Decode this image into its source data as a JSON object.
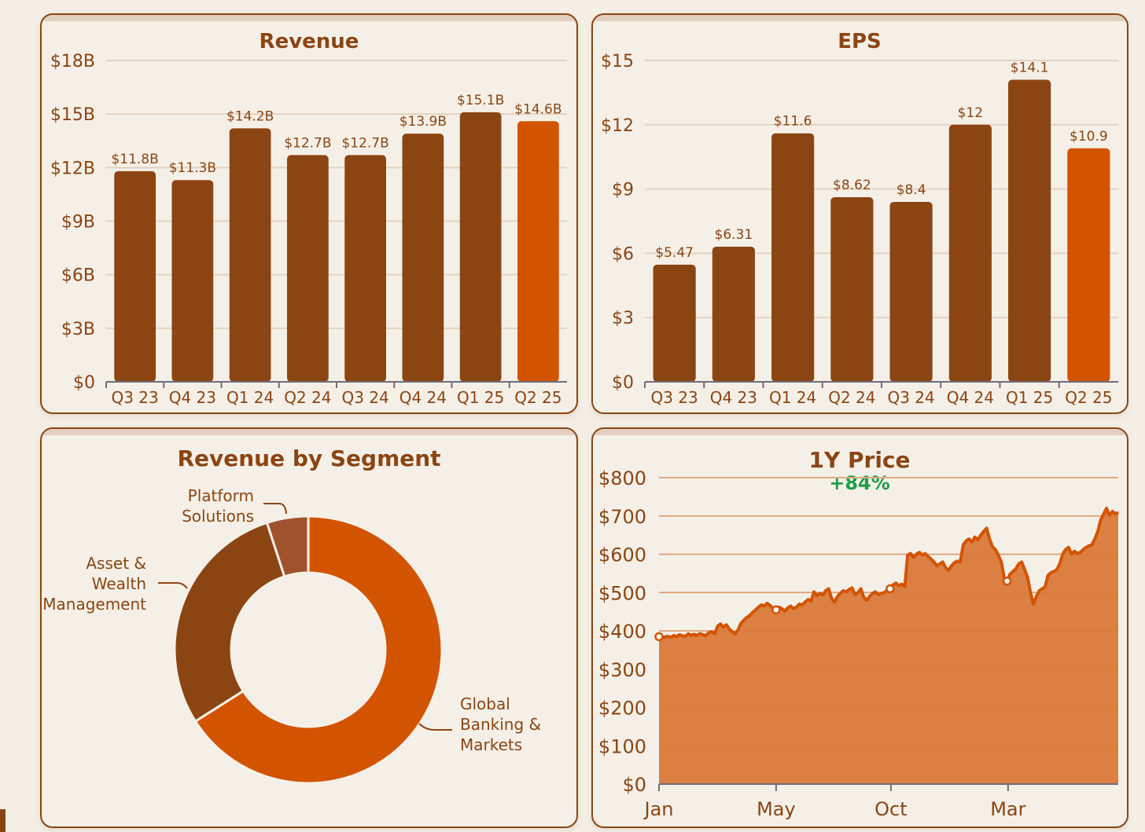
{
  "colors": {
    "primary": "#8b4513",
    "highlight": "#d35400",
    "platform": "#a0522d",
    "area_fill": "#dc7f43",
    "grid": "#e3d2c2",
    "positive": "#1e9e4a"
  },
  "chart_data": [
    {
      "id": "revenue",
      "type": "bar",
      "title": "Revenue",
      "categories": [
        "Q3 23",
        "Q4 23",
        "Q1 24",
        "Q2 24",
        "Q3 24",
        "Q4 24",
        "Q1 25",
        "Q2 25"
      ],
      "values": [
        11.8,
        11.3,
        14.2,
        12.7,
        12.7,
        13.9,
        15.1,
        14.6
      ],
      "data_labels": [
        "$11.8B",
        "$11.3B",
        "$14.2B",
        "$12.7B",
        "$12.7B",
        "$13.9B",
        "$15.1B",
        "$14.6B"
      ],
      "yticks": [
        0,
        3,
        6,
        9,
        12,
        15,
        18
      ],
      "ytick_labels": [
        "$0",
        "$3B",
        "$6B",
        "$9B",
        "$12B",
        "$15B",
        "$18B"
      ],
      "ylim": [
        0,
        18
      ],
      "highlight_last": true,
      "grid": true
    },
    {
      "id": "eps",
      "type": "bar",
      "title": "EPS",
      "categories": [
        "Q3 23",
        "Q4 23",
        "Q1 24",
        "Q2 24",
        "Q3 24",
        "Q4 24",
        "Q1 25",
        "Q2 25"
      ],
      "values": [
        5.47,
        6.31,
        11.6,
        8.62,
        8.4,
        12,
        14.1,
        10.9
      ],
      "data_labels": [
        "$5.47",
        "$6.31",
        "$11.6",
        "$8.62",
        "$8.4",
        "$12",
        "$14.1",
        "$10.9"
      ],
      "yticks": [
        0,
        3,
        6,
        9,
        12,
        15
      ],
      "ytick_labels": [
        "$0",
        "$3",
        "$6",
        "$9",
        "$12",
        "$15"
      ],
      "ylim": [
        0,
        15
      ],
      "highlight_last": true,
      "grid": true
    },
    {
      "id": "segments",
      "type": "pie",
      "title": "Revenue by Segment",
      "donut": true,
      "slices": [
        {
          "label": "Global Banking & Markets",
          "label_lines": [
            "Global",
            "Banking &",
            "Markets"
          ],
          "value": 66
        },
        {
          "label": "Asset & Wealth Management",
          "label_lines": [
            "Asset &",
            "Wealth",
            "Management"
          ],
          "value": 29
        },
        {
          "label": "Platform Solutions",
          "label_lines": [
            "Platform",
            "Solutions"
          ],
          "value": 5
        }
      ]
    },
    {
      "id": "price",
      "type": "area",
      "title": "1Y Price",
      "subtitle": "+84%",
      "xticks": [
        "Jan",
        "May",
        "Oct",
        "Mar"
      ],
      "yticks": [
        0,
        100,
        200,
        300,
        400,
        500,
        600,
        700,
        800
      ],
      "ytick_labels": [
        "$0",
        "$100",
        "$200",
        "$300",
        "$400",
        "$500",
        "$600",
        "$700",
        "$800"
      ],
      "ylim": [
        0,
        800
      ],
      "grid": true,
      "markers": [
        "Jan",
        "May",
        "Oct",
        "Mar"
      ],
      "points": [
        385,
        382,
        384,
        386,
        383,
        388,
        385,
        390,
        387,
        386,
        392,
        389,
        391,
        388,
        393,
        390,
        388,
        395,
        398,
        392,
        412,
        418,
        410,
        416,
        405,
        398,
        392,
        402,
        420,
        428,
        435,
        440,
        448,
        455,
        462,
        468,
        465,
        472,
        466,
        458,
        455,
        462,
        458,
        452,
        460,
        465,
        458,
        462,
        470,
        468,
        476,
        482,
        478,
        502,
        492,
        498,
        494,
        505,
        510,
        485,
        475,
        490,
        498,
        505,
        502,
        508,
        512,
        495,
        500,
        510,
        488,
        480,
        490,
        498,
        502,
        495,
        498,
        500,
        506,
        510,
        520,
        525,
        518,
        522,
        515,
        598,
        602,
        592,
        600,
        605,
        598,
        602,
        594,
        588,
        580,
        570,
        575,
        580,
        565,
        558,
        570,
        578,
        582,
        580,
        625,
        635,
        640,
        632,
        645,
        638,
        650,
        660,
        668,
        640,
        620,
        612,
        598,
        580,
        540,
        530,
        548,
        555,
        562,
        575,
        580,
        560,
        540,
        500,
        470,
        490,
        505,
        510,
        515,
        545,
        552,
        555,
        560,
        575,
        600,
        612,
        618,
        600,
        608,
        602,
        605,
        612,
        618,
        622,
        625,
        640,
        660,
        690,
        705,
        720,
        702,
        712,
        705,
        710
      ]
    }
  ]
}
